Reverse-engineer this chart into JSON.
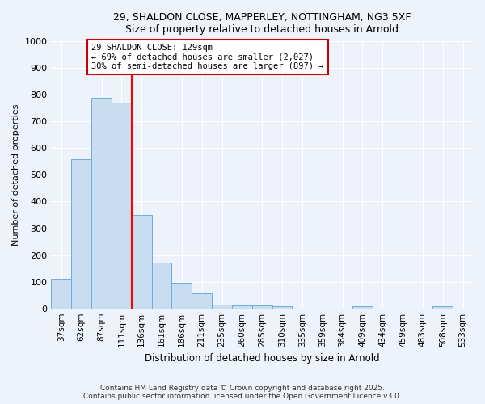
{
  "title_line1": "29, SHALDON CLOSE, MAPPERLEY, NOTTINGHAM, NG3 5XF",
  "title_line2": "Size of property relative to detached houses in Arnold",
  "xlabel": "Distribution of detached houses by size in Arnold",
  "ylabel": "Number of detached properties",
  "categories": [
    "37sqm",
    "62sqm",
    "87sqm",
    "111sqm",
    "136sqm",
    "161sqm",
    "186sqm",
    "211sqm",
    "235sqm",
    "260sqm",
    "285sqm",
    "310sqm",
    "335sqm",
    "359sqm",
    "384sqm",
    "409sqm",
    "434sqm",
    "459sqm",
    "483sqm",
    "508sqm",
    "533sqm"
  ],
  "values": [
    110,
    560,
    790,
    770,
    350,
    170,
    95,
    55,
    15,
    12,
    10,
    8,
    0,
    0,
    0,
    8,
    0,
    0,
    0,
    8,
    0
  ],
  "bar_color": "#c8ddf0",
  "bar_edge_color": "#6aaee0",
  "red_line_x": 3.5,
  "annotation_text": "29 SHALDON CLOSE: 129sqm\n← 69% of detached houses are smaller (2,027)\n30% of semi-detached houses are larger (897) →",
  "annotation_box_color": "#ffffff",
  "annotation_box_edge": "#cc0000",
  "ylim": [
    0,
    1000
  ],
  "yticks": [
    0,
    100,
    200,
    300,
    400,
    500,
    600,
    700,
    800,
    900,
    1000
  ],
  "bg_color": "#eef2fa",
  "grid_color": "#ffffff",
  "footer_line1": "Contains HM Land Registry data © Crown copyright and database right 2025.",
  "footer_line2": "Contains public sector information licensed under the Open Government Licence v3.0."
}
